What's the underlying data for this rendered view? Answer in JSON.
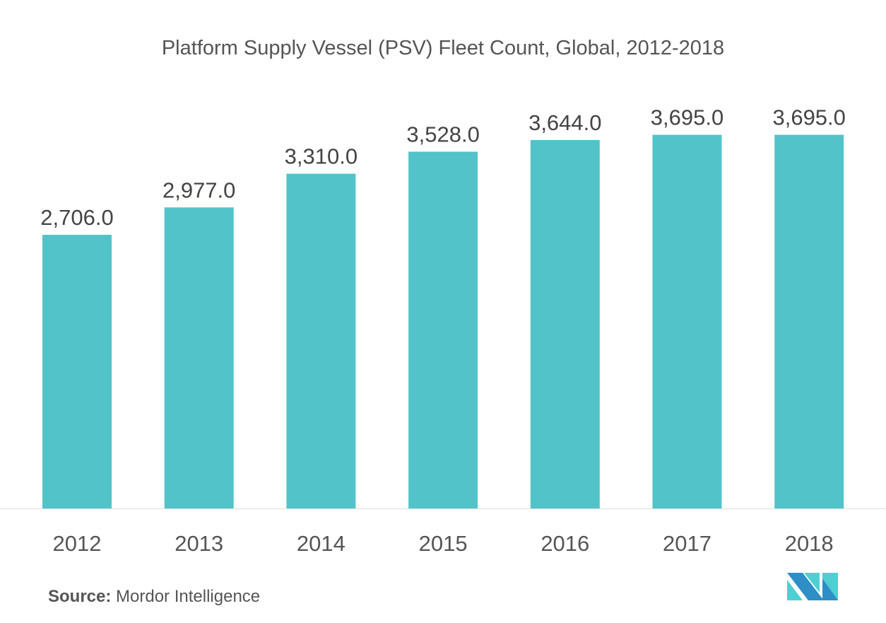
{
  "chart_data": {
    "type": "bar",
    "title": "Platform Supply Vessel (PSV) Fleet Count, Global, 2012-2018",
    "categories": [
      "2012",
      "2013",
      "2014",
      "2015",
      "2016",
      "2017",
      "2018"
    ],
    "values": [
      2706.0,
      2977.0,
      3310.0,
      3528.0,
      3644.0,
      3695.0,
      3695.0
    ],
    "data_labels": [
      "2,706.0",
      "2,977.0",
      "3,310.0",
      "3,528.0",
      "3,644.0",
      "3,695.0",
      "3,695.0"
    ],
    "xlabel": "",
    "ylabel": "",
    "ylim": [
      0,
      4000
    ],
    "grid": false,
    "bar_color": "#52c4c9"
  },
  "source": {
    "label": "Source:",
    "text": "Mordor Intelligence"
  },
  "logo": {
    "text": "MI",
    "colors": [
      "#2e8fc6",
      "#4fcfd1"
    ]
  }
}
